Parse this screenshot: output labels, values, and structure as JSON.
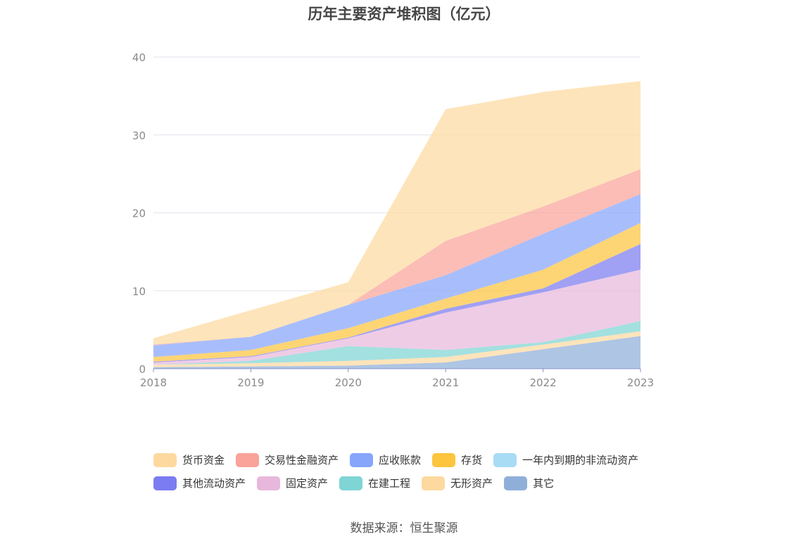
{
  "title": "历年主要资产堆积图（亿元）",
  "source": "数据来源：恒生聚源",
  "chart_data": {
    "type": "area",
    "stacked": true,
    "title": "历年主要资产堆积图（亿元）",
    "x": [
      "2018",
      "2019",
      "2020",
      "2021",
      "2022",
      "2023"
    ],
    "ylim": [
      0,
      40
    ],
    "yticks": [
      "0",
      "10",
      "20",
      "30",
      "40"
    ],
    "grid": true,
    "legend_position": "bottom",
    "series": [
      {
        "name": "其它",
        "color": "#8fafd9",
        "values": [
          0.2,
          0.3,
          0.4,
          0.8,
          2.5,
          4.2
        ]
      },
      {
        "name": "无形资产",
        "color": "#fdd9a0",
        "values": [
          0.3,
          0.4,
          0.6,
          0.7,
          0.6,
          0.6
        ]
      },
      {
        "name": "在建工程",
        "color": "#7fd4d4",
        "values": [
          0.0,
          0.3,
          1.9,
          0.9,
          0.3,
          1.3
        ]
      },
      {
        "name": "固定资产",
        "color": "#e8b8dc",
        "values": [
          0.3,
          0.5,
          1.0,
          4.8,
          6.4,
          6.6
        ]
      },
      {
        "name": "其他流动资产",
        "color": "#7b7cf0",
        "values": [
          0.1,
          0.1,
          0.1,
          0.5,
          0.5,
          3.3
        ]
      },
      {
        "name": "一年内到期的非流动资产",
        "color": "#a8dcf5",
        "values": [
          0.0,
          0.0,
          0.0,
          0.0,
          0.0,
          0.0
        ]
      },
      {
        "name": "存货",
        "color": "#fdc53e",
        "values": [
          0.6,
          0.8,
          1.2,
          1.3,
          2.4,
          2.7
        ]
      },
      {
        "name": "应收账款",
        "color": "#86a5fb",
        "values": [
          1.5,
          1.7,
          3.0,
          3.0,
          4.6,
          3.7
        ]
      },
      {
        "name": "交易性金融资产",
        "color": "#f9a39a",
        "values": [
          0.1,
          0.0,
          0.0,
          4.4,
          3.5,
          3.2
        ]
      },
      {
        "name": "货币资金",
        "color": "#fdd9a0",
        "values": [
          0.8,
          3.4,
          2.9,
          16.9,
          14.7,
          11.3
        ]
      }
    ]
  },
  "legend": {
    "rows": [
      [
        {
          "name": "货币资金",
          "color": "#fdd9a0"
        },
        {
          "name": "交易性金融资产",
          "color": "#f9a39a"
        },
        {
          "name": "应收账款",
          "color": "#86a5fb"
        },
        {
          "name": "存货",
          "color": "#fdc53e"
        },
        {
          "name": "一年内到期的非流动资产",
          "color": "#a8dcf5"
        }
      ],
      [
        {
          "name": "其他流动资产",
          "color": "#7b7cf0"
        },
        {
          "name": "固定资产",
          "color": "#e8b8dc"
        },
        {
          "name": "在建工程",
          "color": "#7fd4d4"
        },
        {
          "name": "无形资产",
          "color": "#fdd9a0"
        },
        {
          "name": "其它",
          "color": "#8fafd9"
        }
      ]
    ]
  }
}
